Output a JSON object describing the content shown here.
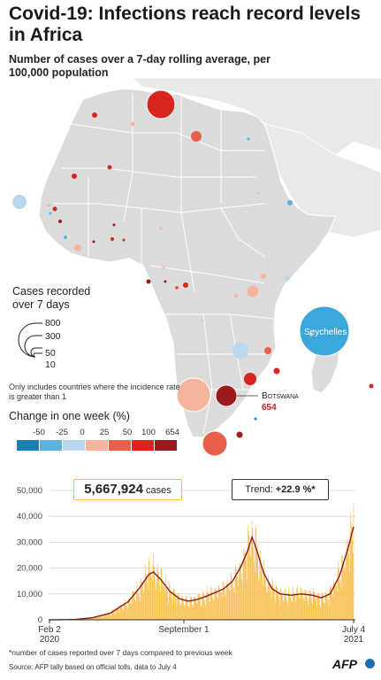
{
  "header": {
    "title": "Covid-19:  Infections reach record levels in Africa",
    "subtitle": "Number of cases over a 7-day rolling average, per 100,000 population"
  },
  "map": {
    "colors": {
      "land": "#dcdcdc",
      "sea_land": "#e9e9e9",
      "border": "#ffffff"
    },
    "labels": {
      "seychelles": "Seychelles",
      "botswana": "Botswana",
      "botswana_value": "654"
    }
  },
  "legend": {
    "cases_title": "Cases recorded over 7 days",
    "size_values": [
      "800",
      "300",
      "50",
      "10"
    ],
    "note": "Only includes countries where the incidence rate is greater than 1",
    "change_title": "Change in one week (%)",
    "change_labels": [
      "-50",
      "-25",
      "0",
      "25",
      "50",
      "100",
      "654"
    ],
    "change_colors": [
      "#1e7fb6",
      "#5bb2dc",
      "#b8d8ef",
      "#f5b49c",
      "#e8604a",
      "#d7261f",
      "#9b1a1c"
    ]
  },
  "summary": {
    "total_cases": "5,667,924",
    "total_unit": "cases",
    "trend_label": "Trend:",
    "trend_value": "+22.9 %*"
  },
  "chart_data": {
    "type": "bar",
    "x_start": "2020-02-02",
    "x_end": "2021-07-04",
    "xtick_labels": [
      {
        "line1": "Feb 2",
        "line2": "2020"
      },
      {
        "line1": "September 1",
        "line2": ""
      },
      {
        "line1": "July 4",
        "line2": "2021"
      }
    ],
    "ylim": [
      0,
      50000
    ],
    "yticks": [
      "0",
      "10,000",
      "20,000",
      "30,000",
      "40,000",
      "50,000"
    ],
    "bar_color": "#f7bf4d",
    "line_color": "#8b1a1a",
    "rolling_average_keypoints": [
      {
        "date": "2020-02-02",
        "value": 0
      },
      {
        "date": "2020-03-15",
        "value": 100
      },
      {
        "date": "2020-04-15",
        "value": 800
      },
      {
        "date": "2020-05-15",
        "value": 2500
      },
      {
        "date": "2020-06-15",
        "value": 7000
      },
      {
        "date": "2020-07-05",
        "value": 12500
      },
      {
        "date": "2020-07-20",
        "value": 17500
      },
      {
        "date": "2020-07-28",
        "value": 18500
      },
      {
        "date": "2020-08-10",
        "value": 15500
      },
      {
        "date": "2020-08-25",
        "value": 11000
      },
      {
        "date": "2020-09-10",
        "value": 8200
      },
      {
        "date": "2020-09-25",
        "value": 7200
      },
      {
        "date": "2020-10-10",
        "value": 7800
      },
      {
        "date": "2020-10-25",
        "value": 9000
      },
      {
        "date": "2020-11-10",
        "value": 10500
      },
      {
        "date": "2020-11-25",
        "value": 12000
      },
      {
        "date": "2020-12-10",
        "value": 15000
      },
      {
        "date": "2020-12-25",
        "value": 21000
      },
      {
        "date": "2021-01-05",
        "value": 27000
      },
      {
        "date": "2021-01-12",
        "value": 32000
      },
      {
        "date": "2021-01-20",
        "value": 27000
      },
      {
        "date": "2021-02-01",
        "value": 18000
      },
      {
        "date": "2021-02-15",
        "value": 12000
      },
      {
        "date": "2021-03-01",
        "value": 10000
      },
      {
        "date": "2021-03-20",
        "value": 9500
      },
      {
        "date": "2021-04-05",
        "value": 10000
      },
      {
        "date": "2021-04-25",
        "value": 9500
      },
      {
        "date": "2021-05-10",
        "value": 8500
      },
      {
        "date": "2021-05-25",
        "value": 10000
      },
      {
        "date": "2021-06-10",
        "value": 17000
      },
      {
        "date": "2021-06-25",
        "value": 28000
      },
      {
        "date": "2021-07-04",
        "value": 36000
      }
    ],
    "peak_daily_value": 45000
  },
  "footer": {
    "footnote": "*number of cases reported over 7 days compared to previous week",
    "source": "Source: AFP tally based on official tolls, data to July 4",
    "brand": "AFP"
  }
}
